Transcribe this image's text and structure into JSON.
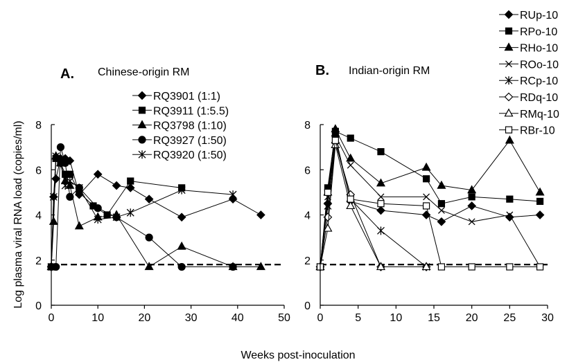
{
  "figure": {
    "ylabel": "Log plasma viral RNA load (copies/ml)",
    "xlabel": "Weeks post-inoculation",
    "threshold": 1.8
  },
  "chart_data": [
    {
      "type": "line",
      "panel_letter": "A.",
      "title": "Chinese-origin RM",
      "xlim": [
        0,
        50
      ],
      "ylim": [
        0,
        8
      ],
      "xticks": [
        0,
        10,
        20,
        30,
        40,
        50
      ],
      "yticks": [
        0,
        2,
        4,
        6,
        8
      ],
      "grid": false,
      "legend_position": "top-right",
      "series": [
        {
          "name": "RQ3901 (1:1)",
          "marker": "diamond",
          "fill": "filled",
          "x": [
            0,
            0.5,
            1,
            2,
            3,
            4,
            6,
            10,
            14,
            17,
            21,
            28,
            39,
            45
          ],
          "y": [
            1.7,
            4.8,
            5.6,
            6.5,
            6.5,
            6.4,
            4.9,
            5.8,
            5.3,
            5.2,
            4.7,
            3.9,
            4.7,
            4.0
          ]
        },
        {
          "name": "RQ3911 (1:5.5)",
          "marker": "square",
          "fill": "filled",
          "x": [
            0,
            1,
            2,
            3,
            4,
            6,
            9,
            12,
            17,
            28
          ],
          "y": [
            1.7,
            6.5,
            6.3,
            5.8,
            5.8,
            5.0,
            4.4,
            4.0,
            5.5,
            5.2
          ]
        },
        {
          "name": "RQ3798 (1:10)",
          "marker": "triangle",
          "fill": "filled",
          "x": [
            0,
            0.5,
            1,
            2,
            3,
            4,
            6,
            10,
            14,
            21,
            28,
            39,
            45
          ],
          "y": [
            1.7,
            3.7,
            6.6,
            6.3,
            5.5,
            5.3,
            3.5,
            3.9,
            4.0,
            1.7,
            2.6,
            1.7,
            1.7
          ]
        },
        {
          "name": "RQ3927 (1:50)",
          "marker": "circle",
          "fill": "filled",
          "x": [
            0,
            1,
            2,
            3,
            4,
            6,
            10,
            14,
            21,
            28,
            39
          ],
          "y": [
            1.7,
            1.7,
            7.0,
            6.3,
            4.8,
            5.2,
            4.3,
            3.9,
            3.0,
            1.7,
            1.7
          ]
        },
        {
          "name": "RQ3920 (1:50)",
          "marker": "star",
          "fill": "none",
          "x": [
            0,
            0.5,
            1,
            2,
            3,
            4,
            6,
            10,
            14,
            17,
            28,
            39
          ],
          "y": [
            1.7,
            4.8,
            6.6,
            6.3,
            5.3,
            5.5,
            5.2,
            3.8,
            3.9,
            4.1,
            5.1,
            4.9
          ]
        }
      ]
    },
    {
      "type": "line",
      "panel_letter": "B.",
      "title": "Indian-origin RM",
      "xlim": [
        0,
        30
      ],
      "ylim": [
        0,
        8
      ],
      "xticks": [
        0,
        5,
        10,
        15,
        20,
        25,
        30
      ],
      "yticks": [
        0,
        2,
        4,
        6,
        8
      ],
      "grid": false,
      "legend_position": "top-right",
      "series": [
        {
          "name": "RUp-10",
          "marker": "diamond",
          "fill": "filled",
          "x": [
            0,
            1,
            2,
            4,
            8,
            14,
            16,
            20,
            25,
            29
          ],
          "y": [
            1.7,
            4.5,
            7.5,
            4.6,
            4.2,
            4.0,
            3.7,
            4.4,
            3.9,
            4.0
          ]
        },
        {
          "name": "RPo-10",
          "marker": "square",
          "fill": "filled",
          "x": [
            0,
            1,
            2,
            4,
            8,
            14,
            16,
            20,
            25,
            29
          ],
          "y": [
            1.7,
            5.2,
            7.7,
            7.4,
            6.8,
            5.6,
            4.5,
            4.8,
            4.7,
            4.6
          ]
        },
        {
          "name": "RHo-10",
          "marker": "triangle",
          "fill": "filled",
          "x": [
            0,
            1,
            2,
            4,
            8,
            14,
            16,
            20,
            25,
            29
          ],
          "y": [
            1.7,
            5.0,
            7.8,
            6.5,
            5.4,
            6.1,
            5.3,
            5.1,
            7.3,
            5.0
          ]
        },
        {
          "name": "ROo-10",
          "marker": "x",
          "fill": "none",
          "x": [
            0,
            1,
            2,
            4,
            8,
            14,
            16,
            20,
            25,
            29
          ],
          "y": [
            1.7,
            4.8,
            7.5,
            6.2,
            4.8,
            4.8,
            4.2,
            3.7,
            4.0,
            1.7
          ]
        },
        {
          "name": "RCp-10",
          "marker": "star",
          "fill": "none",
          "x": [
            0,
            1,
            2,
            4,
            8,
            14
          ],
          "y": [
            1.7,
            4.4,
            7.3,
            4.7,
            3.3,
            1.7
          ]
        },
        {
          "name": "RDq-10",
          "marker": "diamond",
          "fill": "open",
          "x": [
            0,
            1,
            2,
            4,
            8,
            14
          ],
          "y": [
            1.7,
            3.9,
            7.2,
            4.9,
            1.7,
            1.7
          ]
        },
        {
          "name": "RMq-10",
          "marker": "triangle",
          "fill": "open",
          "x": [
            0,
            1,
            2,
            4,
            8,
            14
          ],
          "y": [
            1.7,
            3.4,
            7.1,
            4.4,
            1.7,
            1.7
          ]
        },
        {
          "name": "RBr-10",
          "marker": "square",
          "fill": "open",
          "x": [
            0,
            1,
            2,
            4,
            8,
            14,
            16,
            20,
            25,
            29
          ],
          "y": [
            1.7,
            5.0,
            7.3,
            4.7,
            4.5,
            4.4,
            1.7,
            1.7,
            1.7,
            1.7
          ]
        }
      ]
    }
  ]
}
